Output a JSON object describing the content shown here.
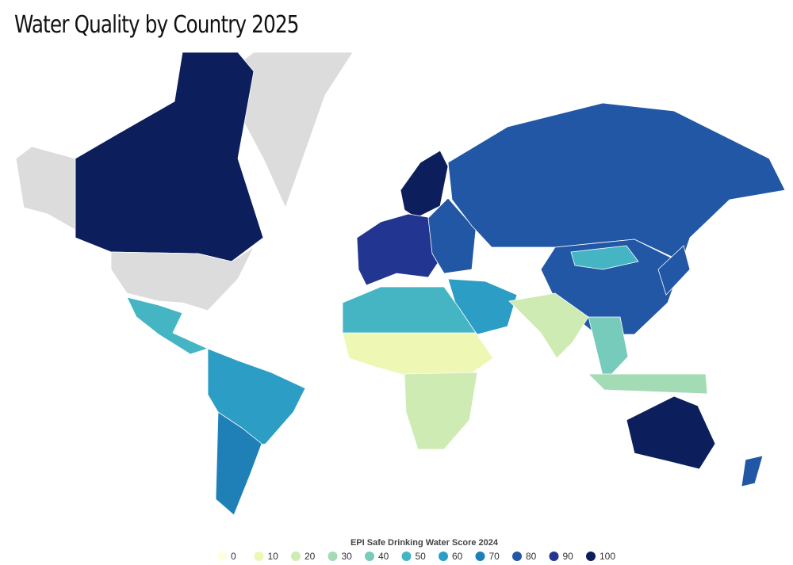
{
  "title": "Water Quality by Country 2025",
  "legend": {
    "title": "EPI Safe Drinking Water Score 2024",
    "stops": [
      {
        "value": 0,
        "color": "#ffffe0"
      },
      {
        "value": 10,
        "color": "#eef8b4"
      },
      {
        "value": 20,
        "color": "#cdebb2"
      },
      {
        "value": 30,
        "color": "#a3dbb5"
      },
      {
        "value": 40,
        "color": "#76cbbb"
      },
      {
        "value": 50,
        "color": "#45b5c4"
      },
      {
        "value": 60,
        "color": "#2c9dc4"
      },
      {
        "value": 70,
        "color": "#1f80b8"
      },
      {
        "value": 80,
        "color": "#2257a6"
      },
      {
        "value": 90,
        "color": "#223590"
      },
      {
        "value": 100,
        "color": "#0c1e5b"
      }
    ]
  }
}
